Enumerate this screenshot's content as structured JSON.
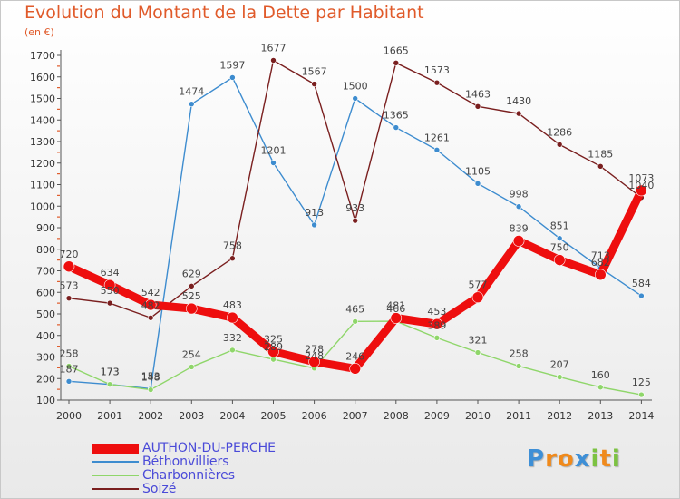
{
  "chart_data": {
    "type": "line",
    "title": "Evolution du Montant de la Dette par Habitant",
    "subtitle": "(en €)",
    "x": [
      "2000",
      "2001",
      "2002",
      "2003",
      "2004",
      "2005",
      "2006",
      "2007",
      "2008",
      "2009",
      "2010",
      "2011",
      "2012",
      "2013",
      "2014"
    ],
    "ylim": [
      100,
      1700
    ],
    "yticks": [
      100,
      200,
      300,
      400,
      500,
      600,
      700,
      800,
      900,
      1000,
      1100,
      1200,
      1300,
      1400,
      1500,
      1600,
      1700
    ],
    "grid": false,
    "legend_position": "bottom-left",
    "series": [
      {
        "name": "Béthonvilliers",
        "color": "#3d8ccf",
        "values": [
          187,
          173,
          153,
          1474,
          1597,
          1201,
          913,
          1500,
          1365,
          1261,
          1105,
          998,
          851,
          713,
          584
        ]
      },
      {
        "name": "Charbonnières",
        "color": "#8fd66a",
        "values": [
          258,
          173,
          148,
          254,
          332,
          289,
          248,
          465,
          466,
          389,
          321,
          258,
          207,
          160,
          125
        ]
      },
      {
        "name": "Soizé",
        "color": "#7a1f1f",
        "values": [
          573,
          550,
          482,
          629,
          758,
          1677,
          1567,
          933,
          1665,
          1573,
          1463,
          1430,
          1286,
          1185,
          1040
        ]
      },
      {
        "name": "AUTHON-DU-PERCHE",
        "color": "#ee0e0e",
        "values": [
          720,
          634,
          542,
          525,
          483,
          325,
          278,
          246,
          481,
          453,
          577,
          839,
          750,
          682,
          1073
        ]
      }
    ]
  },
  "legend": {
    "items": [
      {
        "label": "AUTHON-DU-PERCHE",
        "color": "#ee0e0e"
      },
      {
        "label": "Béthonvilliers",
        "color": "#3d8ccf"
      },
      {
        "label": "Charbonnières",
        "color": "#8fd66a"
      },
      {
        "label": "Soizé",
        "color": "#7a1f1f"
      }
    ]
  },
  "logo": {
    "letters": [
      "P",
      "r",
      "o",
      "x",
      "i",
      "t",
      "i"
    ],
    "colors": [
      "#3e8fd6",
      "#f08a1c",
      "#f08a1c",
      "#3e8fd6",
      "#7cc242",
      "#f08a1c",
      "#7cc242"
    ]
  }
}
